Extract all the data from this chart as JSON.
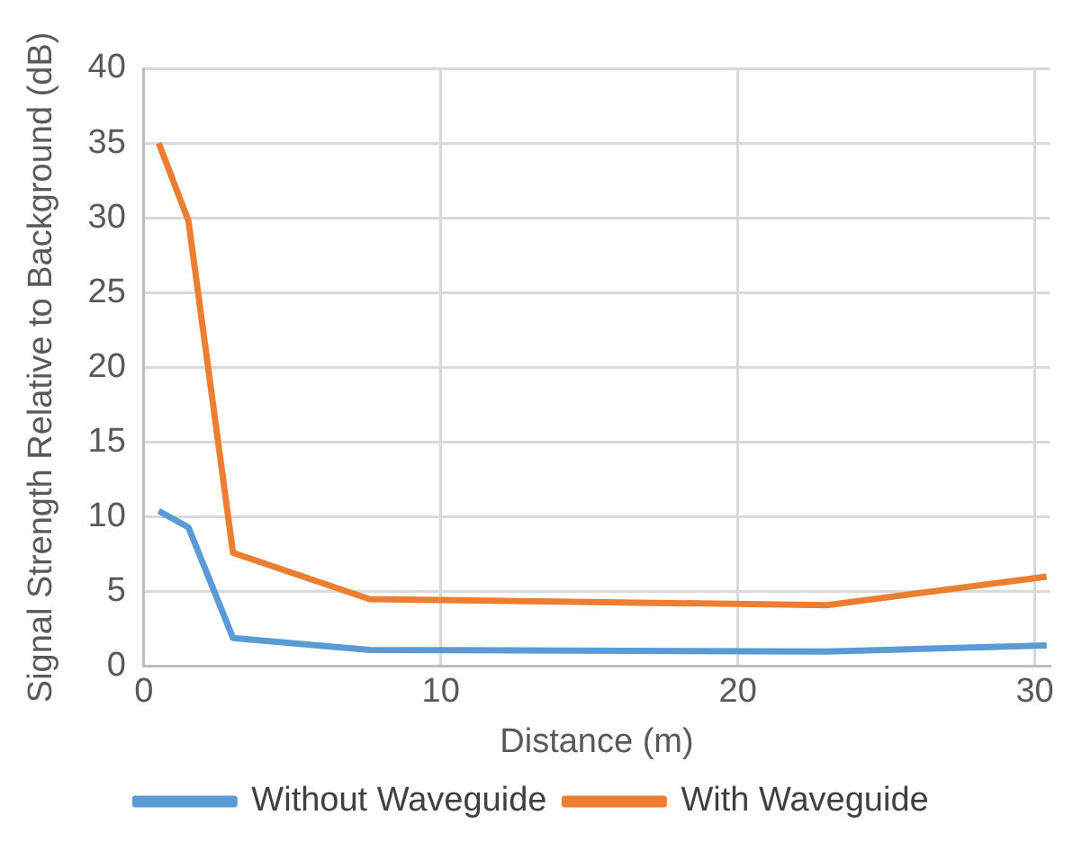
{
  "chart_data": {
    "type": "line",
    "xlabel": "Distance (m)",
    "ylabel": "Signal Strength Relative to Background (dB)",
    "x": [
      0.5,
      1.5,
      3,
      7.6,
      23,
      30.4
    ],
    "series": [
      {
        "name": "Without Waveguide",
        "color": "#5b9bd5",
        "values": [
          10.4,
          9.3,
          1.9,
          1.1,
          1.0,
          1.4
        ]
      },
      {
        "name": "With Waveguide",
        "color": "#ed7d31",
        "values": [
          35,
          29.8,
          7.6,
          4.5,
          4.1,
          6.0
        ]
      }
    ],
    "xlim": [
      0,
      30.5
    ],
    "xticks": [
      0,
      10,
      20,
      30
    ],
    "ylim": [
      0,
      40
    ],
    "yticks": [
      0,
      5,
      10,
      15,
      20,
      25,
      30,
      35,
      40
    ],
    "grid": true,
    "legend": "bottom",
    "marker": "none",
    "line_style": "solid"
  }
}
